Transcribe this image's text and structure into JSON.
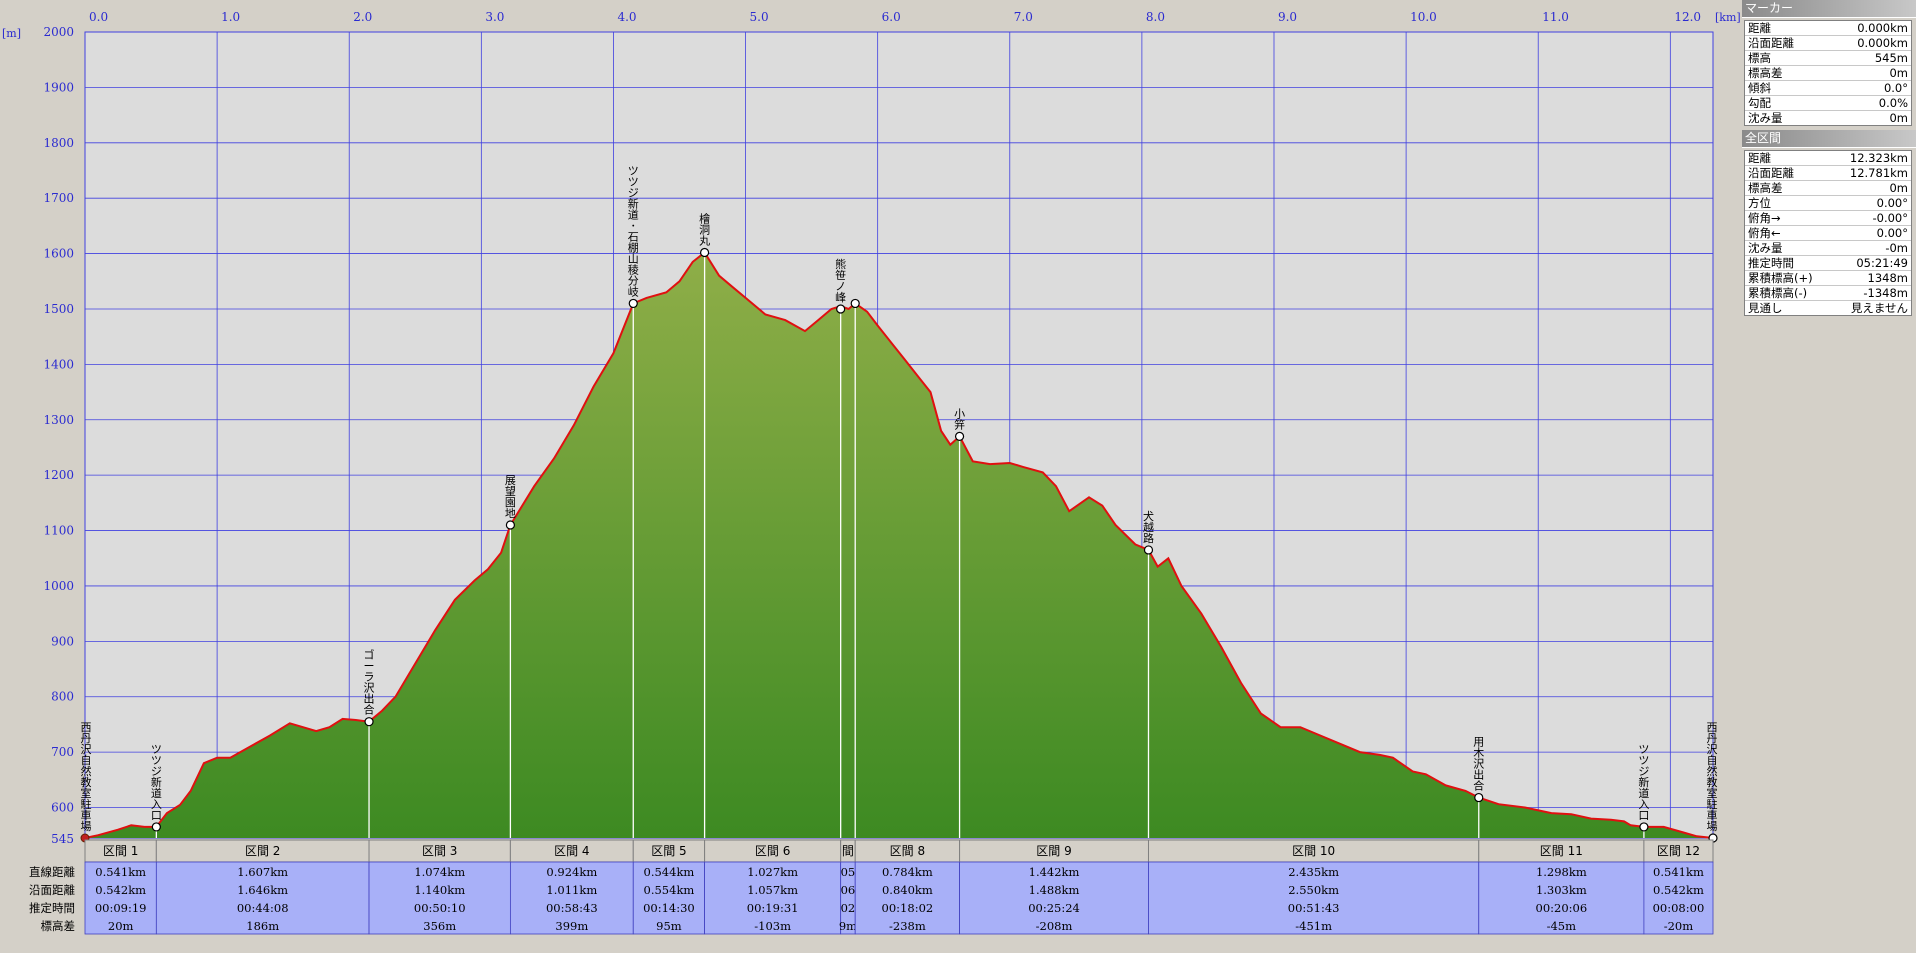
{
  "chart_data": {
    "type": "area",
    "xlabel": "",
    "ylabel": "",
    "x_unit": "[km]",
    "y_unit": "[m]",
    "xlim": [
      0,
      12.323
    ],
    "ylim": [
      545,
      2000
    ],
    "x_ticks": [
      "0.0",
      "1.0",
      "2.0",
      "3.0",
      "4.0",
      "5.0",
      "6.0",
      "7.0",
      "8.0",
      "9.0",
      "10.0",
      "11.0",
      "12.0"
    ],
    "y_ticks": [
      "2000",
      "1900",
      "1800",
      "1700",
      "1600",
      "1500",
      "1400",
      "1300",
      "1200",
      "1100",
      "1000",
      "900",
      "800",
      "700",
      "600"
    ],
    "y_base_label": "545",
    "profile": [
      [
        0.0,
        545
      ],
      [
        0.1,
        550
      ],
      [
        0.25,
        560
      ],
      [
        0.35,
        568
      ],
      [
        0.45,
        565
      ],
      [
        0.54,
        565
      ],
      [
        0.62,
        590
      ],
      [
        0.72,
        605
      ],
      [
        0.8,
        630
      ],
      [
        0.9,
        680
      ],
      [
        1.0,
        690
      ],
      [
        1.1,
        690
      ],
      [
        1.25,
        710
      ],
      [
        1.4,
        730
      ],
      [
        1.55,
        752
      ],
      [
        1.65,
        745
      ],
      [
        1.75,
        738
      ],
      [
        1.85,
        745
      ],
      [
        1.95,
        760
      ],
      [
        2.05,
        758
      ],
      [
        2.15,
        755
      ],
      [
        2.25,
        775
      ],
      [
        2.35,
        800
      ],
      [
        2.5,
        860
      ],
      [
        2.65,
        920
      ],
      [
        2.8,
        975
      ],
      [
        2.95,
        1010
      ],
      [
        3.05,
        1030
      ],
      [
        3.15,
        1060
      ],
      [
        3.22,
        1110
      ],
      [
        3.4,
        1180
      ],
      [
        3.55,
        1230
      ],
      [
        3.7,
        1290
      ],
      [
        3.85,
        1360
      ],
      [
        4.0,
        1420
      ],
      [
        4.15,
        1510
      ],
      [
        4.25,
        1520
      ],
      [
        4.4,
        1530
      ],
      [
        4.5,
        1550
      ],
      [
        4.6,
        1585
      ],
      [
        4.69,
        1602
      ],
      [
        4.8,
        1560
      ],
      [
        4.9,
        1540
      ],
      [
        5.0,
        1520
      ],
      [
        5.15,
        1490
      ],
      [
        5.3,
        1480
      ],
      [
        5.45,
        1460
      ],
      [
        5.55,
        1480
      ],
      [
        5.65,
        1500
      ],
      [
        5.72,
        1505
      ],
      [
        5.78,
        1500
      ],
      [
        5.83,
        1510
      ],
      [
        5.92,
        1495
      ],
      [
        6.0,
        1470
      ],
      [
        6.1,
        1440
      ],
      [
        6.2,
        1410
      ],
      [
        6.3,
        1380
      ],
      [
        6.4,
        1350
      ],
      [
        6.48,
        1280
      ],
      [
        6.55,
        1255
      ],
      [
        6.62,
        1270
      ],
      [
        6.72,
        1225
      ],
      [
        6.85,
        1220
      ],
      [
        7.0,
        1222
      ],
      [
        7.1,
        1215
      ],
      [
        7.25,
        1205
      ],
      [
        7.35,
        1180
      ],
      [
        7.45,
        1135
      ],
      [
        7.6,
        1160
      ],
      [
        7.7,
        1145
      ],
      [
        7.8,
        1110
      ],
      [
        7.95,
        1075
      ],
      [
        8.05,
        1065
      ],
      [
        8.12,
        1035
      ],
      [
        8.2,
        1050
      ],
      [
        8.3,
        1000
      ],
      [
        8.45,
        950
      ],
      [
        8.6,
        890
      ],
      [
        8.75,
        825
      ],
      [
        8.9,
        770
      ],
      [
        9.05,
        745
      ],
      [
        9.2,
        745
      ],
      [
        9.35,
        730
      ],
      [
        9.5,
        715
      ],
      [
        9.65,
        700
      ],
      [
        9.8,
        695
      ],
      [
        9.9,
        690
      ],
      [
        10.05,
        665
      ],
      [
        10.15,
        660
      ],
      [
        10.3,
        640
      ],
      [
        10.45,
        630
      ],
      [
        10.55,
        618
      ],
      [
        10.7,
        606
      ],
      [
        10.9,
        600
      ],
      [
        11.1,
        590
      ],
      [
        11.25,
        588
      ],
      [
        11.4,
        580
      ],
      [
        11.55,
        578
      ],
      [
        11.65,
        575
      ],
      [
        11.7,
        568
      ],
      [
        11.8,
        565
      ],
      [
        11.95,
        565
      ],
      [
        12.1,
        555
      ],
      [
        12.2,
        548
      ],
      [
        12.323,
        545
      ]
    ],
    "markers": [
      {
        "x": 0.0,
        "y": 545,
        "label": "西丹沢自然教室駐車場",
        "symbol": "start"
      },
      {
        "x": 0.54,
        "y": 565,
        "label": "ツツジ新道入口"
      },
      {
        "x": 2.15,
        "y": 755,
        "label": "ゴーラ沢出合"
      },
      {
        "x": 3.22,
        "y": 1110,
        "label": "展望園地"
      },
      {
        "x": 4.15,
        "y": 1510,
        "label": "ツツジ新道･石棚山稜分岐"
      },
      {
        "x": 4.69,
        "y": 1602,
        "label": "檜洞丸"
      },
      {
        "x": 5.72,
        "y": 1500,
        "label": "熊笹ノ峰"
      },
      {
        "x": 5.83,
        "y": 1510,
        "label": ""
      },
      {
        "x": 6.62,
        "y": 1270,
        "label": "小笄"
      },
      {
        "x": 8.05,
        "y": 1065,
        "label": "犬越路"
      },
      {
        "x": 10.55,
        "y": 618,
        "label": "用木沢出合"
      },
      {
        "x": 11.8,
        "y": 565,
        "label": "ツツジ新道入口"
      },
      {
        "x": 12.323,
        "y": 545,
        "label": "西丹沢自然教室駐車場"
      }
    ],
    "row_headers": [
      "直線距離",
      "沿面距離",
      "推定時間",
      "標高差"
    ],
    "sections": [
      {
        "name": "区間 1",
        "dist": "0.541km",
        "surf": "0.542km",
        "time": "00:09:19",
        "elev": "20m"
      },
      {
        "name": "区間 2",
        "dist": "1.607km",
        "surf": "1.646km",
        "time": "00:44:08",
        "elev": "186m"
      },
      {
        "name": "区間 3",
        "dist": "1.074km",
        "surf": "1.140km",
        "time": "00:50:10",
        "elev": "356m"
      },
      {
        "name": "区間 4",
        "dist": "0.924km",
        "surf": "1.011km",
        "time": "00:58:43",
        "elev": "399m"
      },
      {
        "name": "区間 5",
        "dist": "0.544km",
        "surf": "0.554km",
        "time": "00:14:30",
        "elev": "95m"
      },
      {
        "name": "区間 6",
        "dist": "1.027km",
        "surf": "1.057km",
        "time": "00:19:31",
        "elev": "-103m"
      },
      {
        "name": "間",
        "dist": "05",
        "surf": "06",
        "time": "02",
        "elev": "9m"
      },
      {
        "name": "区間 8",
        "dist": "0.784km",
        "surf": "0.840km",
        "time": "00:18:02",
        "elev": "-238m"
      },
      {
        "name": "区間 9",
        "dist": "1.442km",
        "surf": "1.488km",
        "time": "00:25:24",
        "elev": "-208m"
      },
      {
        "name": "区間 10",
        "dist": "2.435km",
        "surf": "2.550km",
        "time": "00:51:43",
        "elev": "-451m"
      },
      {
        "name": "区間 11",
        "dist": "1.298km",
        "surf": "1.303km",
        "time": "00:20:06",
        "elev": "-45m"
      },
      {
        "name": "区間 12",
        "dist": "0.541km",
        "surf": "0.542km",
        "time": "00:08:00",
        "elev": "-20m"
      }
    ],
    "colors": {
      "area_top": "#8fae48",
      "area_bottom": "#3d8a22",
      "line": "#e01010",
      "grid": "#4040e0",
      "plot_bg": "#dcdcdc",
      "table_bg": "#a8b0f8",
      "header_bg": "#d4d0c8",
      "axis_text": "#2a2ad0"
    }
  },
  "side": {
    "marker_title": "マーカー",
    "marker_rows": [
      {
        "k": "距離",
        "v": "0.000km"
      },
      {
        "k": "沿面距離",
        "v": "0.000km"
      },
      {
        "k": "標高",
        "v": "545m"
      },
      {
        "k": "標高差",
        "v": "0m"
      },
      {
        "k": "傾斜",
        "v": "0.0°"
      },
      {
        "k": "勾配",
        "v": "0.0%"
      },
      {
        "k": "沈み量",
        "v": "0m"
      }
    ],
    "total_title": "全区間",
    "total_rows": [
      {
        "k": "距離",
        "v": "12.323km"
      },
      {
        "k": "沿面距離",
        "v": "12.781km"
      },
      {
        "k": "標高差",
        "v": "0m"
      },
      {
        "k": "方位",
        "v": "0.00°"
      },
      {
        "k": "俯角→",
        "v": "-0.00°"
      },
      {
        "k": "俯角←",
        "v": "0.00°"
      },
      {
        "k": "沈み量",
        "v": "-0m"
      },
      {
        "k": "推定時間",
        "v": "05:21:49"
      },
      {
        "k": "累積標高(+)",
        "v": "1348m"
      },
      {
        "k": "累積標高(-)",
        "v": "-1348m"
      },
      {
        "k": "見通し",
        "v": "見えません"
      }
    ]
  }
}
